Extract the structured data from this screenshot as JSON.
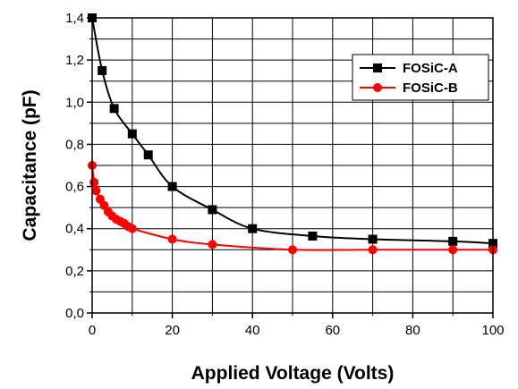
{
  "chart_data": {
    "type": "line",
    "xlabel": "Applied Voltage (Volts)",
    "ylabel": "Capacitance (pF)",
    "xlim": [
      0,
      100
    ],
    "ylim": [
      0.0,
      1.4
    ],
    "x_ticks": [
      0,
      20,
      40,
      60,
      80,
      100
    ],
    "x_tick_labels": [
      "0",
      "20",
      "40",
      "60",
      "80",
      "100"
    ],
    "y_ticks": [
      0.0,
      0.2,
      0.4,
      0.6,
      0.8,
      1.0,
      1.2,
      1.4
    ],
    "y_tick_labels": [
      "0,0",
      "0,2",
      "0,4",
      "0,6",
      "0,8",
      "1,0",
      "1,2",
      "1,4"
    ],
    "grid": true,
    "legend_position": "top-right",
    "series": [
      {
        "name": "FOSiC-A",
        "color": "#000000",
        "marker": "square",
        "points": [
          [
            0,
            1.4
          ],
          [
            2.5,
            1.15
          ],
          [
            5.5,
            0.97
          ],
          [
            10,
            0.85
          ],
          [
            14,
            0.75
          ],
          [
            20,
            0.6
          ],
          [
            30,
            0.49
          ],
          [
            40,
            0.4
          ],
          [
            55,
            0.365
          ],
          [
            70,
            0.35
          ],
          [
            90,
            0.34
          ],
          [
            100,
            0.33
          ]
        ]
      },
      {
        "name": "FOSiC-B",
        "color": "#ff0000",
        "marker": "circle",
        "points": [
          [
            0,
            0.7
          ],
          [
            0.5,
            0.62
          ],
          [
            1,
            0.58
          ],
          [
            2,
            0.54
          ],
          [
            3,
            0.51
          ],
          [
            4,
            0.48
          ],
          [
            5,
            0.46
          ],
          [
            6,
            0.445
          ],
          [
            7,
            0.435
          ],
          [
            8,
            0.425
          ],
          [
            9,
            0.41
          ],
          [
            10,
            0.4
          ],
          [
            20,
            0.35
          ],
          [
            30,
            0.325
          ],
          [
            50,
            0.3
          ],
          [
            70,
            0.3
          ],
          [
            90,
            0.3
          ],
          [
            100,
            0.3
          ]
        ]
      }
    ]
  }
}
